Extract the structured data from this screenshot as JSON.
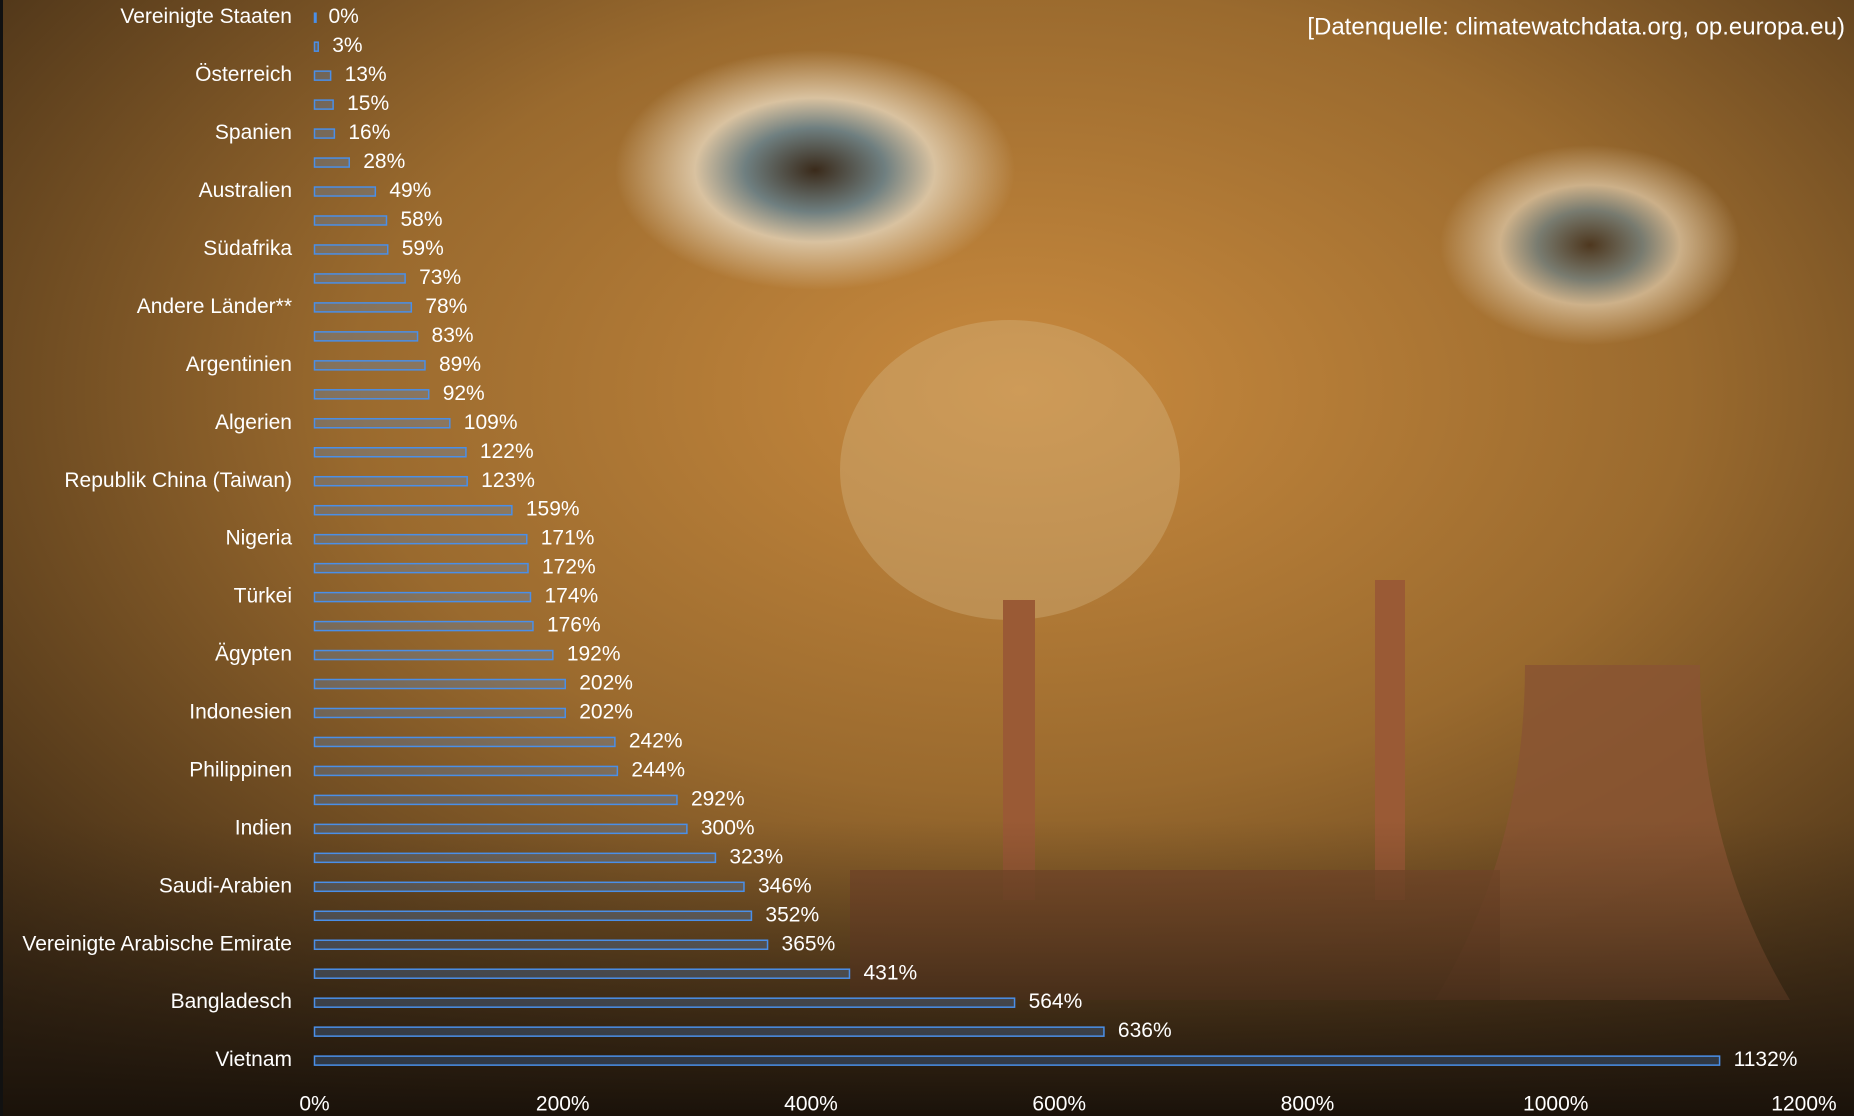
{
  "chart_data": {
    "type": "barh",
    "source": "[Datenquelle: climatewatchdata.org, op.europa.eu)",
    "categories": [
      "Vereinigte Staaten",
      null,
      "Österreich",
      null,
      "Spanien",
      null,
      "Australien",
      null,
      "Südafrika",
      null,
      "Andere Länder**",
      null,
      "Argentinien",
      null,
      "Algerien",
      null,
      "Republik China (Taiwan)",
      null,
      "Nigeria",
      null,
      "Türkei",
      null,
      "Ägypten",
      null,
      "Indonesien",
      null,
      "Philippinen",
      null,
      "Indien",
      null,
      "Saudi-Arabien",
      null,
      "Vereinigte Arabische Emirate",
      null,
      "Bangladesch",
      null,
      "Vietnam"
    ],
    "values": [
      0,
      3,
      13,
      15,
      16,
      28,
      49,
      58,
      59,
      73,
      78,
      83,
      89,
      92,
      109,
      122,
      123,
      159,
      171,
      172,
      174,
      176,
      192,
      202,
      202,
      242,
      244,
      292,
      300,
      323,
      346,
      352,
      365,
      431,
      564,
      636,
      1132
    ],
    "value_labels": [
      "0%",
      "3%",
      "13%",
      "15%",
      "16%",
      "28%",
      "49%",
      "58%",
      "59%",
      "73%",
      "78%",
      "83%",
      "89%",
      "92%",
      "109%",
      "122%",
      "123%",
      "159%",
      "171%",
      "172%",
      "174%",
      "176%",
      "192%",
      "202%",
      "202%",
      "242%",
      "244%",
      "292%",
      "300%",
      "323%",
      "346%",
      "352%",
      "365%",
      "431%",
      "564%",
      "636%",
      "1132%"
    ],
    "color": "#4a8fe8",
    "xlim": [
      0,
      1200
    ],
    "xticks": [
      {
        "value": 0,
        "label": "0%"
      },
      {
        "value": 200,
        "label": "200%"
      },
      {
        "value": 400,
        "label": "400%"
      },
      {
        "value": 600,
        "label": "600%"
      },
      {
        "value": 800,
        "label": "800%"
      },
      {
        "value": 1000,
        "label": "1000%"
      },
      {
        "value": 1200,
        "label": "1200%"
      }
    ]
  }
}
